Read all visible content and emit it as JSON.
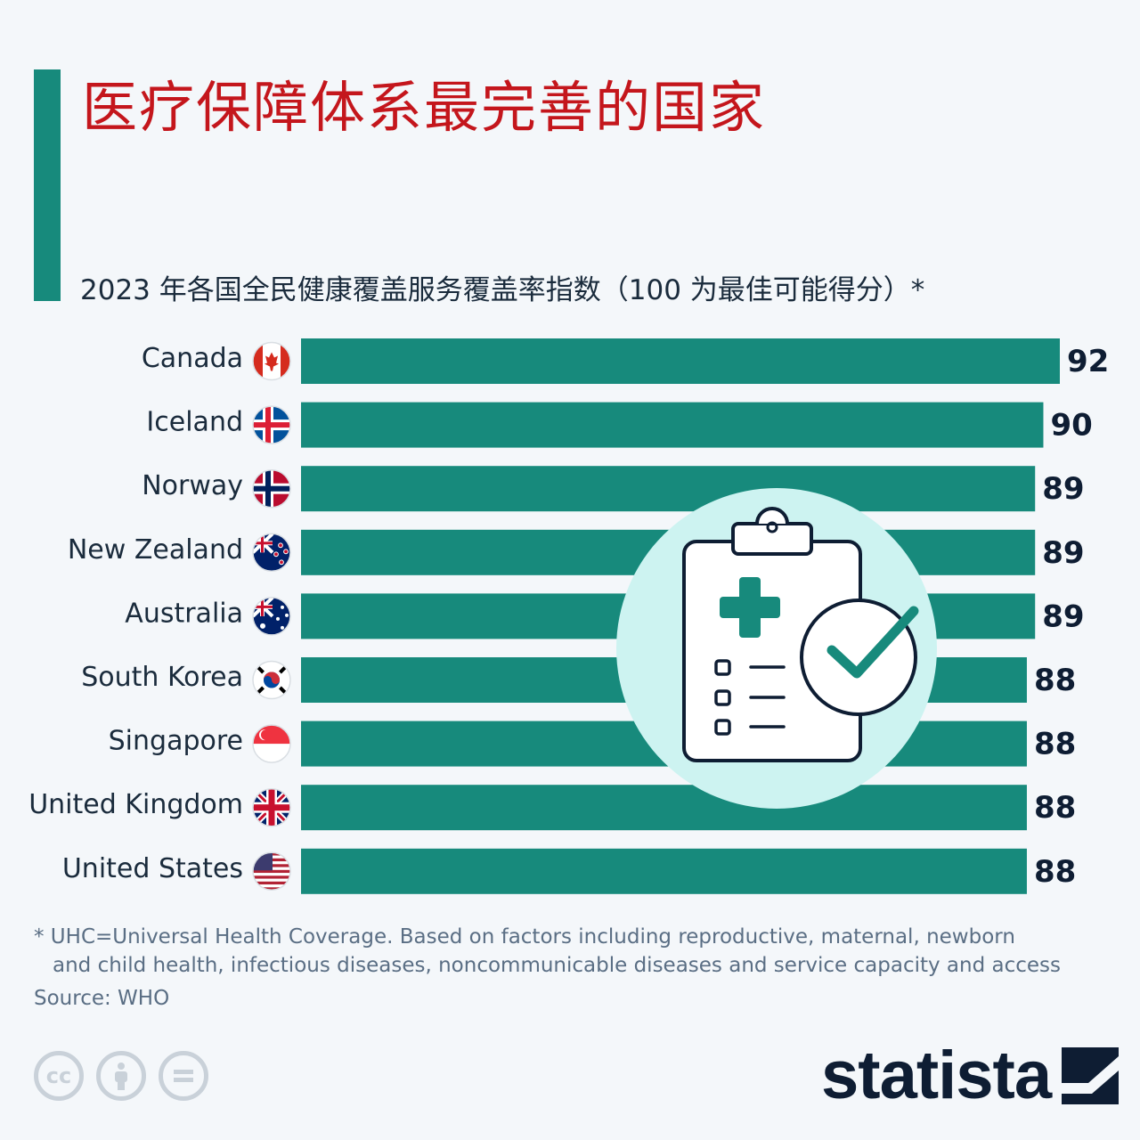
{
  "title": "医疗保障体系最完善的国家",
  "subtitle": "2023 年各国全民健康覆盖服务覆盖率指数（100 为最佳可能得分）*",
  "chart_data": {
    "type": "bar",
    "orientation": "horizontal",
    "categories": [
      "Canada",
      "Iceland",
      "Norway",
      "New Zealand",
      "Australia",
      "South Korea",
      "Singapore",
      "United Kingdom",
      "United States"
    ],
    "values": [
      92,
      90,
      89,
      89,
      89,
      88,
      88,
      88,
      88
    ],
    "xlim": [
      0,
      92
    ],
    "grid": false,
    "bar_color": "#178a7c"
  },
  "footnote_line1": "* UHC=Universal Health Coverage. Based on factors including reproductive, maternal, newborn",
  "footnote_line2": "and child health, infectious diseases, noncommunicable diseases and service capacity and access",
  "source": "Source: WHO",
  "license_icons": [
    "cc-icon",
    "by-person-icon",
    "nd-equals-icon"
  ],
  "brand": "statista",
  "colors": {
    "accent": "#178a7c",
    "title": "#c4161c",
    "text": "#1a2b3c",
    "illustration_bg": "#cdf3f1"
  },
  "flag_icons": [
    "canada-flag-icon",
    "iceland-flag-icon",
    "norway-flag-icon",
    "new-zealand-flag-icon",
    "australia-flag-icon",
    "south-korea-flag-icon",
    "singapore-flag-icon",
    "united-kingdom-flag-icon",
    "united-states-flag-icon"
  ]
}
